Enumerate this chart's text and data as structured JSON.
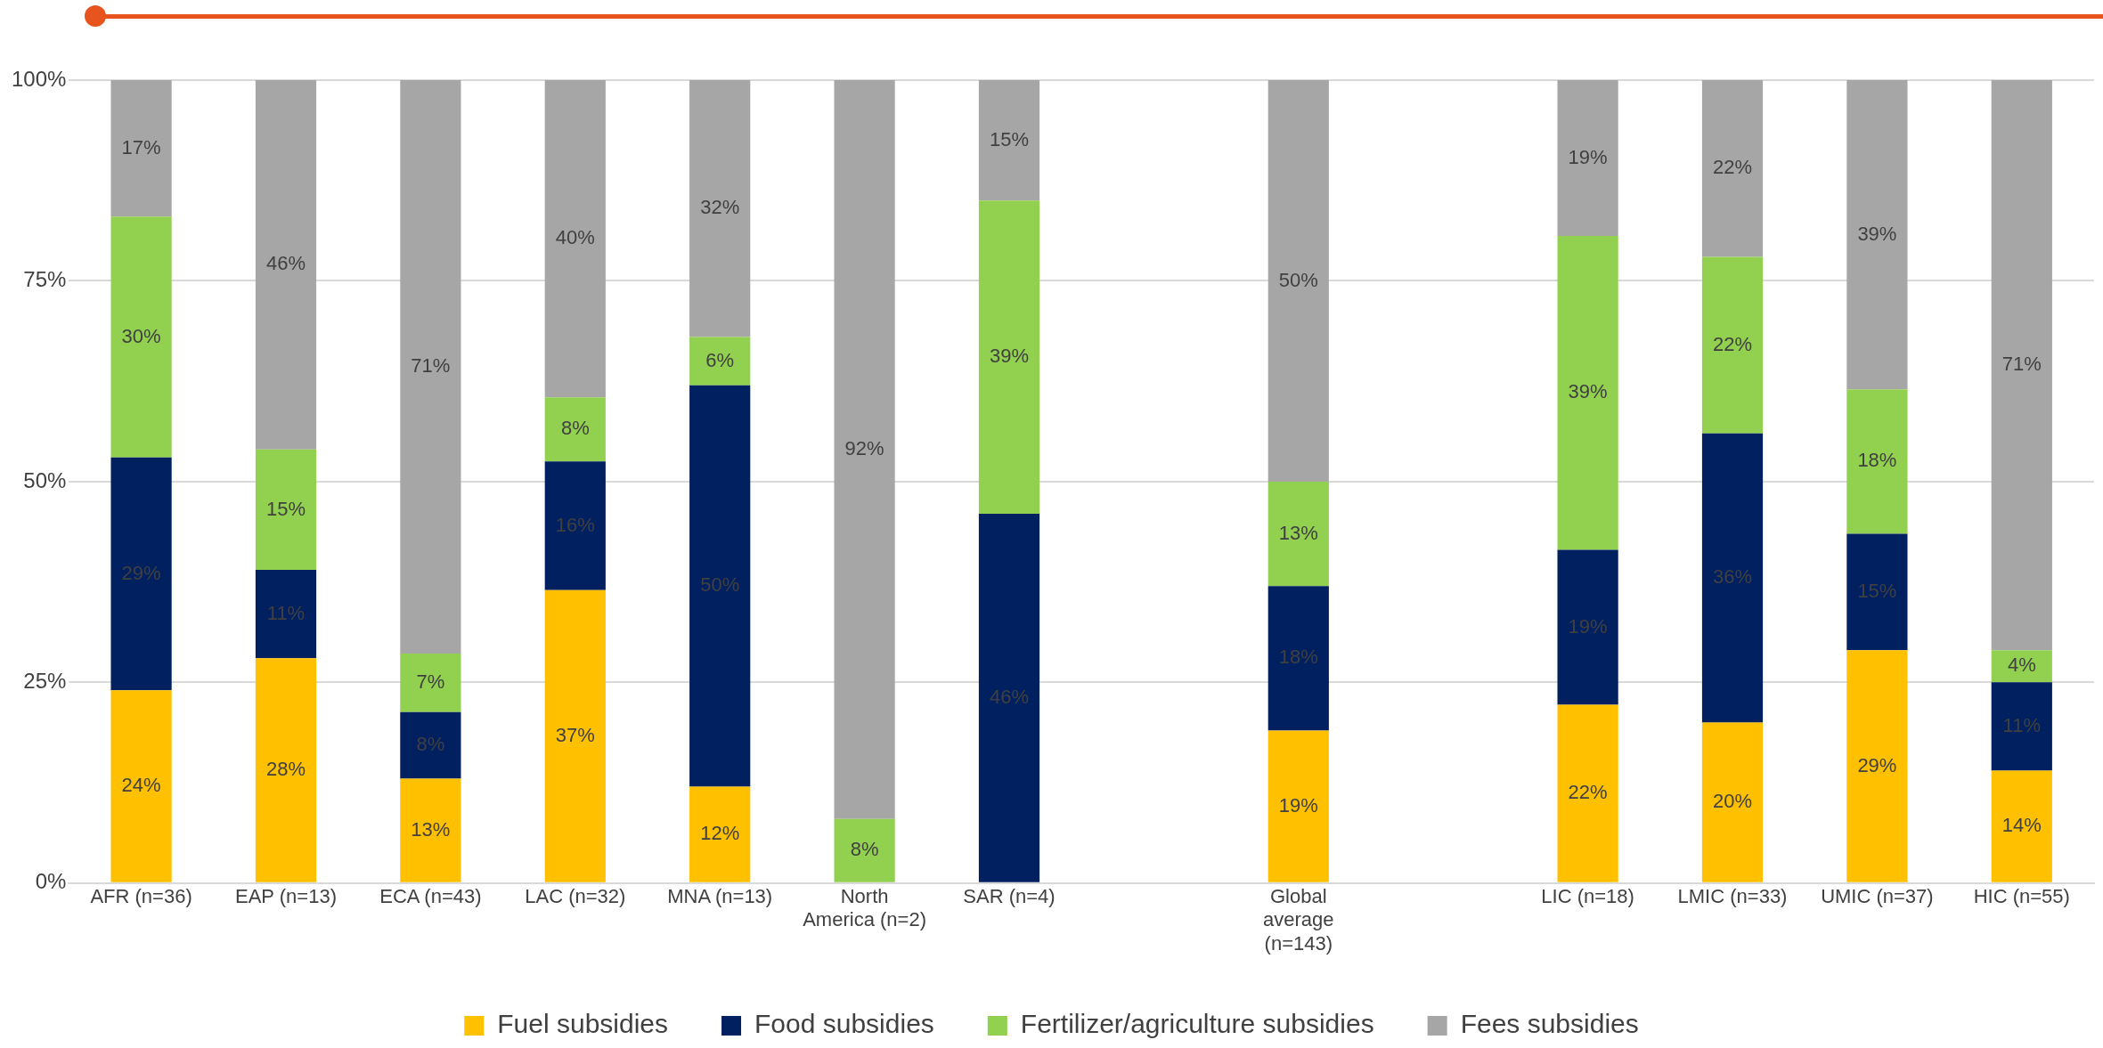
{
  "chart_data": {
    "type": "bar",
    "stacked": true,
    "categories": [
      "AFR (n=36)",
      "EAP (n=13)",
      "ECA (n=43)",
      "LAC (n=32)",
      "MNA (n=13)",
      "North America (n=2)",
      "SAR (n=4)",
      null,
      "Global average (n=143)",
      null,
      "LIC (n=18)",
      "LMIC (n=33)",
      "UMIC (n=37)",
      "HIC (n=55)"
    ],
    "series": [
      {
        "name": "Fuel subsidies",
        "color": "#ffc000",
        "values": [
          24,
          28,
          13,
          36.5,
          12,
          0,
          0,
          null,
          19,
          null,
          22.2,
          20,
          29,
          14
        ],
        "value_labels": [
          "24%",
          "28%",
          "13%",
          "37%",
          "12%",
          null,
          null,
          null,
          "19%",
          null,
          "22%",
          "20%",
          "29%",
          "14%"
        ]
      },
      {
        "name": "Food subsidies",
        "color": "#002060",
        "values": [
          29,
          11,
          8.3,
          16,
          50,
          0,
          46,
          null,
          18,
          null,
          19.3,
          36,
          14.5,
          11
        ],
        "value_labels": [
          "29%",
          "11%",
          "8%",
          "16%",
          "50%",
          null,
          "46%",
          null,
          "18%",
          null,
          "19%",
          "36%",
          "15%",
          "11%"
        ]
      },
      {
        "name": "Fertilizer/agriculture subsidies",
        "color": "#92d050",
        "values": [
          30,
          15,
          7.3,
          8,
          6,
          8,
          39,
          null,
          13,
          null,
          39.1,
          22,
          18,
          4
        ],
        "value_labels": [
          "30%",
          "15%",
          "7%",
          "8%",
          "6%",
          "8%",
          "39%",
          null,
          "13%",
          null,
          "39%",
          "22%",
          "18%",
          "4%"
        ]
      },
      {
        "name": "Fees subsidies",
        "color": "#a6a6a6",
        "values": [
          17,
          46,
          71.4,
          39.5,
          32,
          92,
          15,
          null,
          50,
          null,
          19.4,
          22,
          38.5,
          71
        ],
        "value_labels": [
          "17%",
          "46%",
          "71%",
          "40%",
          "32%",
          "92%",
          "15%",
          null,
          "50%",
          null,
          "19%",
          "22%",
          "39%",
          "71%"
        ]
      }
    ],
    "ylim": [
      0,
      100
    ],
    "yticks": [
      {
        "value": 0,
        "label": "0%"
      },
      {
        "value": 25,
        "label": "25%"
      },
      {
        "value": 50,
        "label": "50%"
      },
      {
        "value": 75,
        "label": "75%"
      },
      {
        "value": 100,
        "label": "100%"
      }
    ],
    "grid": "y",
    "legend": "bottom"
  }
}
